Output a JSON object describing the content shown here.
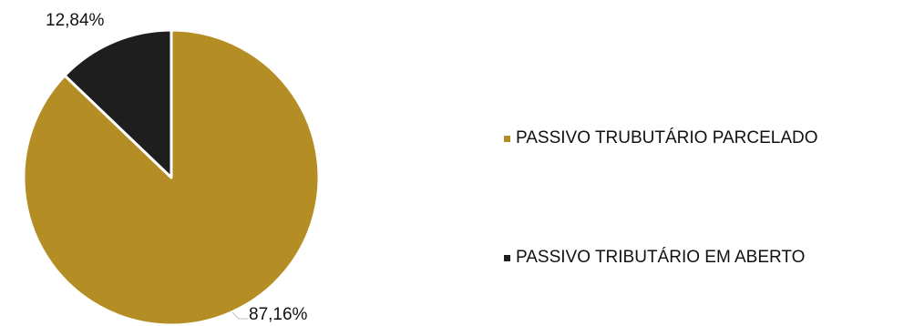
{
  "chart_data": {
    "type": "pie",
    "categories": [
      "PASSIVO TRUBUTÁRIO PARCELADO",
      "PASSIVO TRIBUTÁRIO EM ABERTO"
    ],
    "values": [
      87.16,
      12.84
    ],
    "data_labels": [
      "87,16%",
      "12,84%"
    ],
    "colors": [
      "#B58D25",
      "#1E1E1E"
    ],
    "start_angle": "12 o'clock",
    "direction": "clockwise",
    "legend_position": "right"
  }
}
